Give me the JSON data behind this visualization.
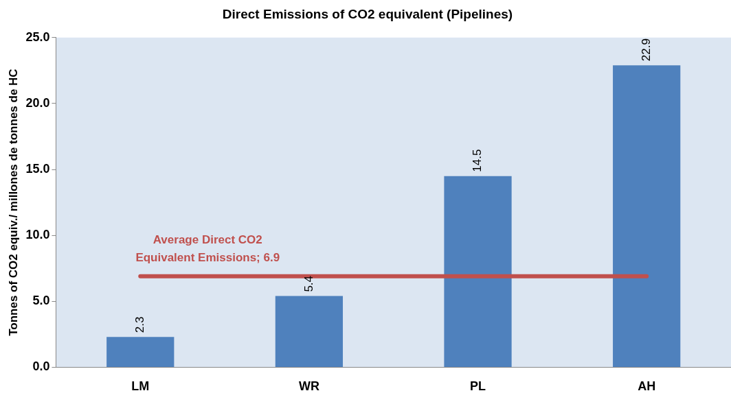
{
  "chart_data": {
    "type": "bar",
    "title": "Direct Emissions of CO2 equivalent (Pipelines)",
    "ylabel": "Tonnes of CO2 equiv./ millones de tonnes de HC",
    "categories": [
      "LM",
      "WR",
      "PL",
      "AH"
    ],
    "values": [
      2.3,
      5.4,
      14.5,
      22.9
    ],
    "color": "#4f81bd",
    "ylim": [
      0,
      25
    ],
    "yticks": [
      {
        "value": 0,
        "label": "0.0"
      },
      {
        "value": 5,
        "label": "5.0"
      },
      {
        "value": 10,
        "label": "10.0"
      },
      {
        "value": 15,
        "label": "15.0"
      },
      {
        "value": 20,
        "label": "20.0"
      },
      {
        "value": 25,
        "label": "25.0"
      }
    ],
    "grid": false,
    "legend": false,
    "data_labels": true,
    "ref_lines": [
      {
        "axis": "y",
        "value": 6.9,
        "label": "Average Direct CO2 Equivalent Emissions; 6.9",
        "color": "#c0504d"
      }
    ]
  }
}
